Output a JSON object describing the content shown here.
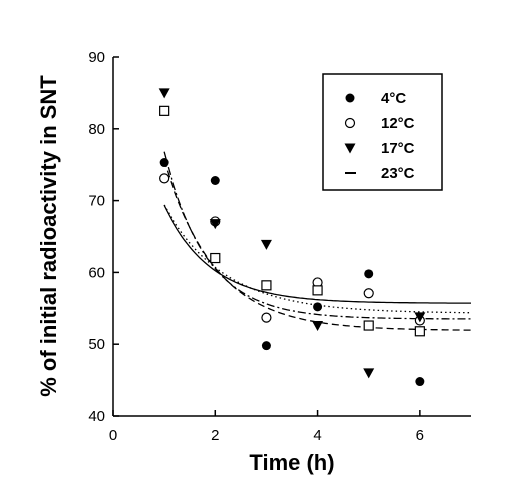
{
  "chart_data": {
    "type": "scatter",
    "xlabel": "Time (h)",
    "ylabel": "% of initial radioactivity in SNT",
    "xlim": [
      0,
      7
    ],
    "ylim": [
      40,
      90
    ],
    "xticks": [
      0,
      2,
      4,
      6
    ],
    "yticks": [
      40,
      50,
      60,
      70,
      80,
      90
    ],
    "grid": false,
    "legend_position": "top-right",
    "series": [
      {
        "name": "4°C",
        "marker": "filled-circle",
        "line": "solid",
        "points": [
          [
            1,
            75.3
          ],
          [
            2,
            72.8
          ],
          [
            3,
            49.8
          ],
          [
            4,
            55.2
          ],
          [
            5,
            59.8
          ],
          [
            6,
            44.8
          ]
        ],
        "fit": {
          "a": 55.7,
          "b": 41.0,
          "k": 1.1
        }
      },
      {
        "name": "12°C",
        "marker": "open-circle",
        "line": "dotted",
        "points": [
          [
            1,
            73.1
          ],
          [
            2,
            67.1
          ],
          [
            3,
            53.7
          ],
          [
            4,
            58.6
          ],
          [
            5,
            57.1
          ],
          [
            6,
            53.3
          ]
        ],
        "fit": {
          "a": 54.3,
          "b": 35.7,
          "k": 0.86
        }
      },
      {
        "name": "17°C",
        "marker": "filled-triangle-down",
        "line": "dash-dot",
        "points": [
          [
            1,
            85.0
          ],
          [
            2,
            66.8
          ],
          [
            3,
            63.9
          ],
          [
            4,
            52.6
          ],
          [
            5,
            46.0
          ],
          [
            6,
            53.8
          ]
        ],
        "fit": {
          "a": 53.5,
          "b": 77.4,
          "k": 1.2
        }
      },
      {
        "name": "23°C",
        "marker": "open-square",
        "line": "dashed",
        "points": [
          [
            1,
            82.5
          ],
          [
            2,
            62.0
          ],
          [
            3,
            58.2
          ],
          [
            4,
            57.5
          ],
          [
            5,
            52.6
          ],
          [
            6,
            51.8
          ]
        ],
        "fit": {
          "a": 51.9,
          "b": 64.5,
          "k": 1.0
        }
      }
    ]
  }
}
